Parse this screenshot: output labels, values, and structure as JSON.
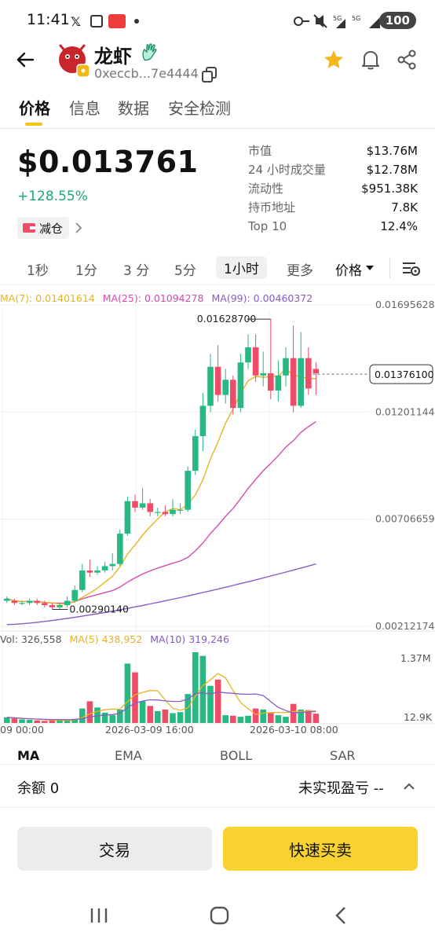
{
  "status_bar": {
    "time": "11:41",
    "battery": "100"
  },
  "header": {
    "coin_name": "龙虾",
    "address": "0xeccb...7e4444"
  },
  "tabs": [
    {
      "label": "价格"
    },
    {
      "label": "信息"
    },
    {
      "label": "数据"
    },
    {
      "label": "安全检测"
    }
  ],
  "price": {
    "value": "$0.013761",
    "change": "+128.55%",
    "reduce_label": "减仓"
  },
  "stats": [
    {
      "label": "市值",
      "value": "$13.76M"
    },
    {
      "label": "24 小时成交量",
      "value": "$12.78M"
    },
    {
      "label": "流动性",
      "value": "$951.38K"
    },
    {
      "label": "持币地址",
      "value": "7.8K"
    },
    {
      "label": "Top 10",
      "value": "12.4%"
    }
  ],
  "timeframes": {
    "items": [
      "1秒",
      "1分",
      "3 分",
      "5分",
      "1小时",
      "更多"
    ],
    "active": "1小时",
    "price_selector": "价格"
  },
  "chart_data": {
    "type": "candlestick",
    "ma_legend": {
      "ma7": "MA(7): 0.01401614",
      "ma25": "MA(25): 0.01094278",
      "ma99": "MA(99): 0.00460372"
    },
    "y_axis_labels": [
      "0.01695628",
      "0.01201144",
      "0.00706659",
      "0.00212174"
    ],
    "y_ticks": [
      0.01695628,
      0.01201144,
      0.00706659,
      0.00212174
    ],
    "current_price_label": "0.01376100",
    "current_price": 0.013761,
    "high_label": "0.01628700",
    "low_label": "0.00290140",
    "candles": [
      [
        0.0033,
        0.0034,
        0.0035,
        0.0032
      ],
      [
        0.0033,
        0.0032,
        0.0034,
        0.0031
      ],
      [
        0.0032,
        0.0032,
        0.0033,
        0.0031
      ],
      [
        0.0032,
        0.0033,
        0.0034,
        0.0031
      ],
      [
        0.0033,
        0.0032,
        0.0034,
        0.0031
      ],
      [
        0.0032,
        0.0031,
        0.0033,
        0.003
      ],
      [
        0.0031,
        0.003,
        0.0032,
        0.0029
      ],
      [
        0.003,
        0.0031,
        0.0032,
        0.0029
      ],
      [
        0.0031,
        0.0033,
        0.0035,
        0.003
      ],
      [
        0.0033,
        0.0038,
        0.004,
        0.0032
      ],
      [
        0.0038,
        0.0047,
        0.005,
        0.0037
      ],
      [
        0.0047,
        0.0046,
        0.0052,
        0.0044
      ],
      [
        0.0046,
        0.0047,
        0.0049,
        0.0045
      ],
      [
        0.0047,
        0.0049,
        0.0051,
        0.0046
      ],
      [
        0.0049,
        0.005,
        0.0055,
        0.0047
      ],
      [
        0.005,
        0.0064,
        0.0066,
        0.0049
      ],
      [
        0.0064,
        0.0079,
        0.0081,
        0.0063
      ],
      [
        0.0079,
        0.0076,
        0.0082,
        0.0074
      ],
      [
        0.0076,
        0.0078,
        0.0085,
        0.0075
      ],
      [
        0.0078,
        0.0074,
        0.008,
        0.0072
      ],
      [
        0.0074,
        0.0074,
        0.0076,
        0.0072
      ],
      [
        0.0074,
        0.0073,
        0.0077,
        0.0072
      ],
      [
        0.0073,
        0.0075,
        0.008,
        0.0072
      ],
      [
        0.0075,
        0.0075,
        0.0078,
        0.0073
      ],
      [
        0.0075,
        0.0093,
        0.0095,
        0.0074
      ],
      [
        0.0093,
        0.0109,
        0.0112,
        0.0091
      ],
      [
        0.0109,
        0.0123,
        0.0129,
        0.0102
      ],
      [
        0.0123,
        0.0141,
        0.0147,
        0.012
      ],
      [
        0.0141,
        0.0128,
        0.0151,
        0.0125
      ],
      [
        0.0128,
        0.0135,
        0.014,
        0.0124
      ],
      [
        0.0135,
        0.0122,
        0.0137,
        0.0119
      ],
      [
        0.0122,
        0.0143,
        0.0147,
        0.012
      ],
      [
        0.0143,
        0.015,
        0.0156,
        0.014
      ],
      [
        0.015,
        0.0137,
        0.0156,
        0.0134
      ],
      [
        0.0137,
        0.0138,
        0.0148,
        0.0132
      ],
      [
        0.0138,
        0.013,
        0.0163,
        0.0126
      ],
      [
        0.013,
        0.0137,
        0.0144,
        0.0125
      ],
      [
        0.0137,
        0.0145,
        0.015,
        0.0132
      ],
      [
        0.0145,
        0.0123,
        0.016,
        0.012
      ],
      [
        0.0123,
        0.0145,
        0.0157,
        0.0122
      ],
      [
        0.0145,
        0.0131,
        0.015,
        0.0128
      ],
      [
        0.014,
        0.0138,
        0.0143,
        0.0128
      ]
    ],
    "volume_legend": {
      "vol": "Vol: 326,558",
      "ma5": "MA(5) 438,952",
      "ma10": "MA(10) 319,246"
    },
    "volume_axis_labels": [
      "1.37M",
      "12.9K"
    ],
    "volume_max": 1370000,
    "volumes": [
      110000,
      90000,
      70000,
      60000,
      50000,
      40000,
      50000,
      60000,
      50000,
      80000,
      280000,
      420000,
      300000,
      200000,
      150000,
      260000,
      1150000,
      980000,
      420000,
      330000,
      230000,
      260000,
      190000,
      210000,
      560000,
      1370000,
      1300000,
      720000,
      840000,
      150000,
      140000,
      120000,
      140000,
      280000,
      260000,
      200000,
      150000,
      120000,
      370000,
      260000,
      250000,
      180000
    ],
    "x_labels": [
      "09 00:00",
      "2026-03-09 16:00",
      "2026-03-10 08:00"
    ],
    "indicator_tabs": [
      "MA",
      "EMA",
      "BOLL",
      "SAR"
    ]
  },
  "balance": {
    "label": "余额 0",
    "pnl_label": "未实现盈亏 --"
  },
  "actions": {
    "trade": "交易",
    "quick_trade": "快速买卖"
  },
  "colors": {
    "up": "#27b982",
    "down": "#ee4d68",
    "ma7": "#e6b422",
    "ma25": "#d54ab2",
    "ma99": "#8a5bc6",
    "accent": "#f8d22f"
  }
}
